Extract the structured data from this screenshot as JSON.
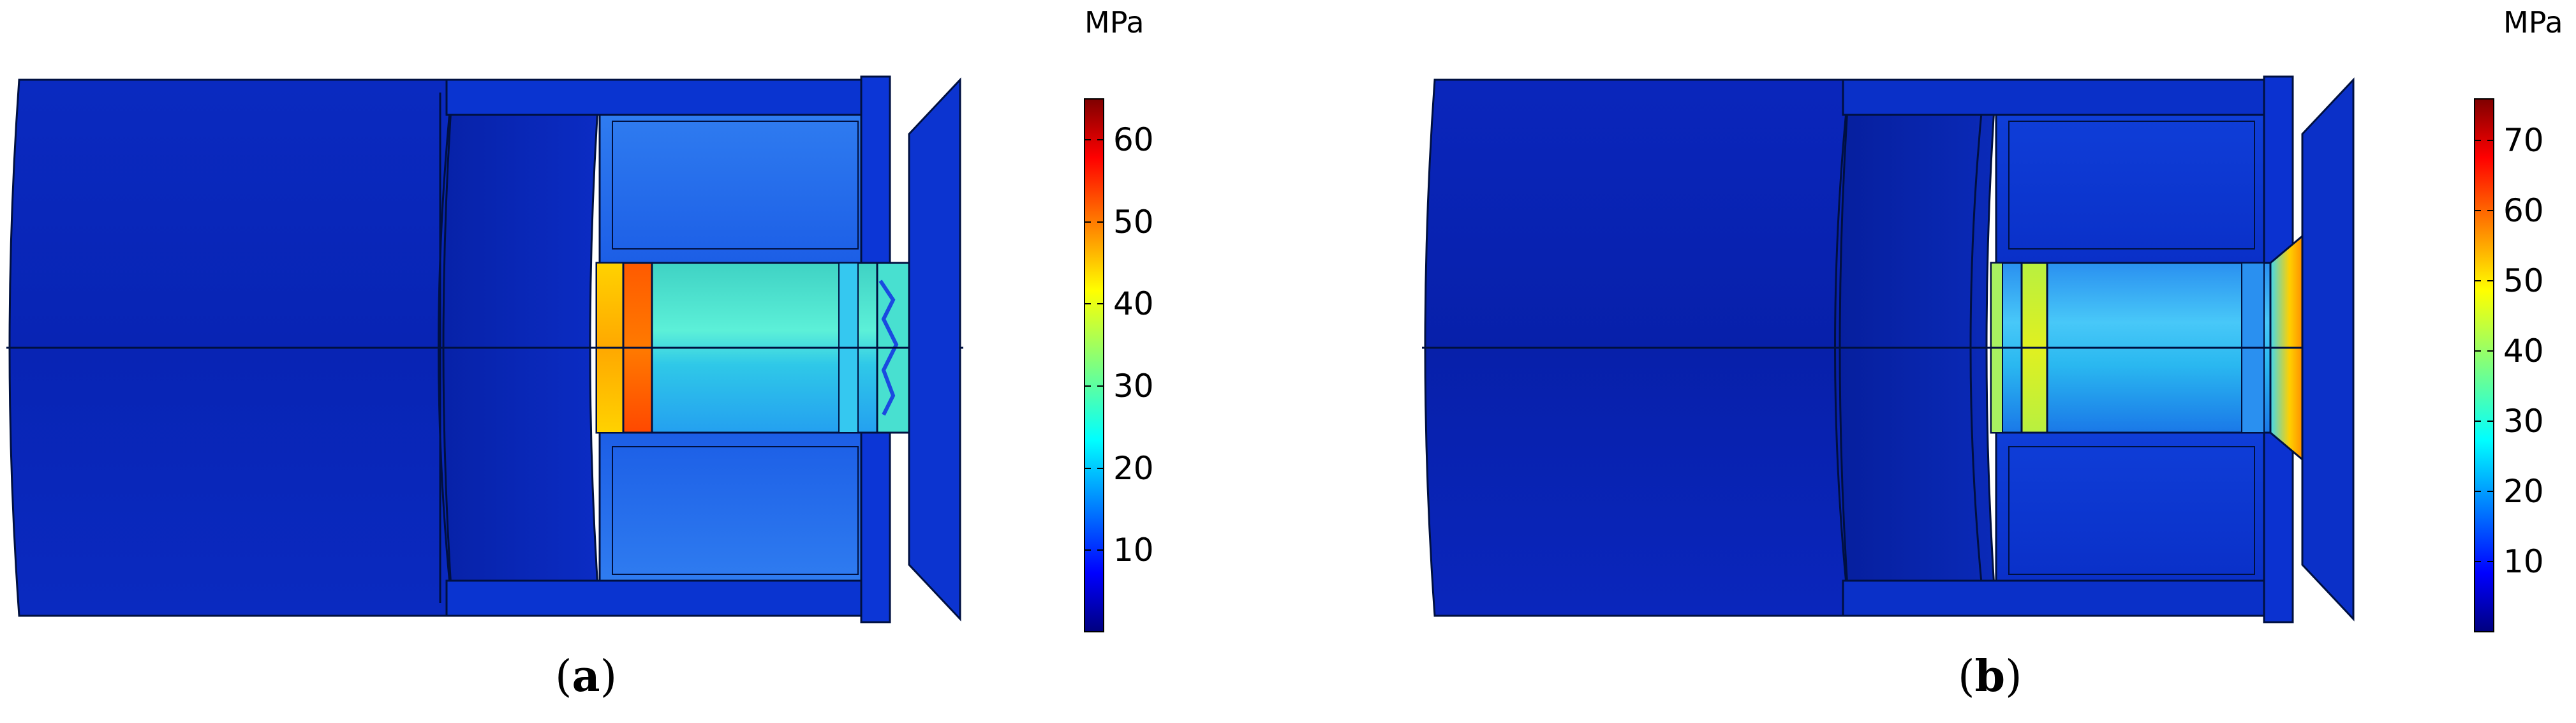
{
  "figure": {
    "panels": [
      {
        "id": "a",
        "caption_open": "(",
        "caption_letter": "a",
        "caption_close": ")",
        "colorbar": {
          "unit": "MPa",
          "ticks": [
            "10",
            "20",
            "30",
            "40",
            "50",
            "60"
          ],
          "max_value": 65
        }
      },
      {
        "id": "b",
        "caption_open": "(",
        "caption_letter": "b",
        "caption_close": ")",
        "colorbar": {
          "unit": "MPa",
          "ticks": [
            "10",
            "20",
            "30",
            "40",
            "50",
            "60",
            "70"
          ],
          "max_value": 76
        }
      }
    ],
    "colormap": [
      "#00007f",
      "#0000ff",
      "#007fff",
      "#00ffff",
      "#7fff7f",
      "#ffff00",
      "#ff7f00",
      "#ff0000",
      "#7f0000"
    ]
  }
}
